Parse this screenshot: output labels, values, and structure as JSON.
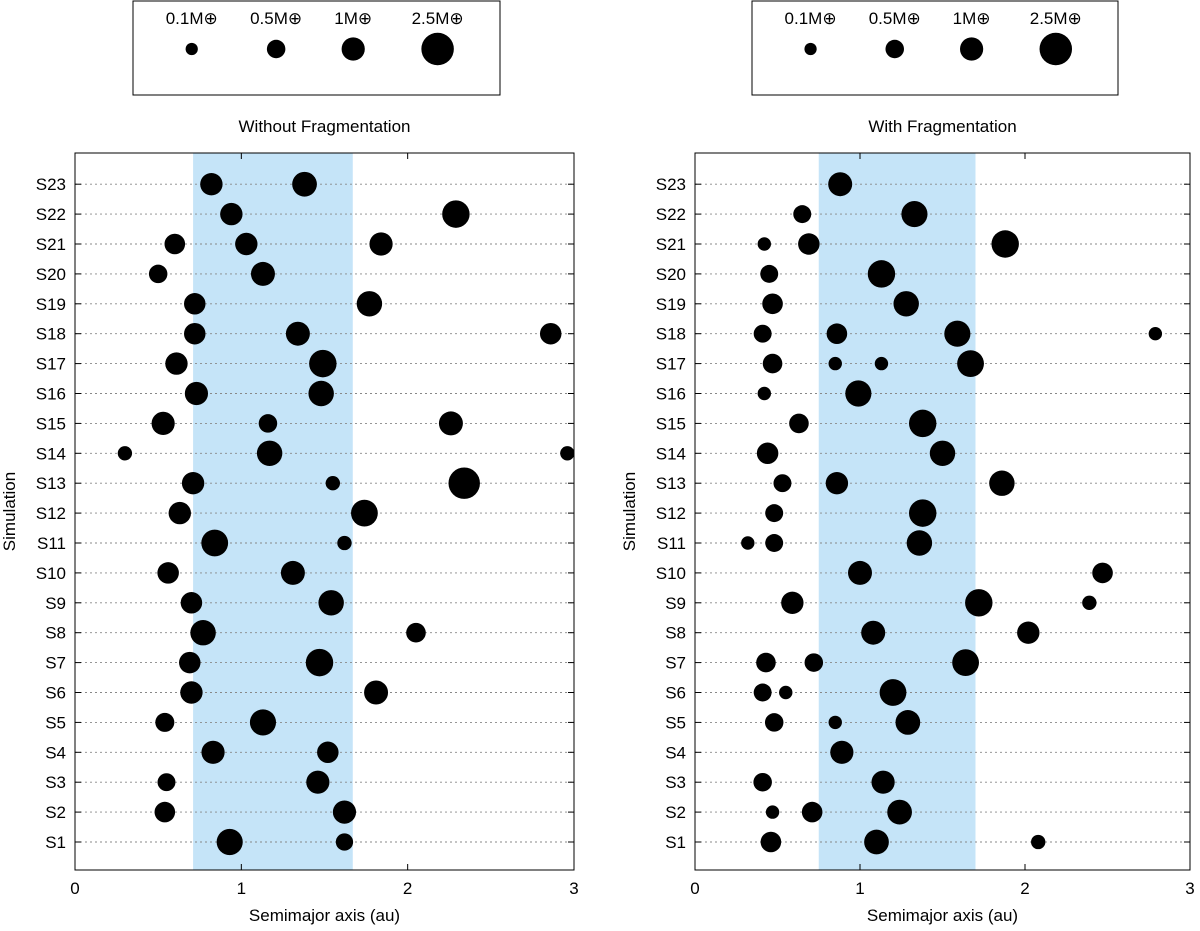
{
  "chart_data": [
    {
      "type": "scatter",
      "title": "Without Fragmentation",
      "xlabel": "Semimajor axis (au)",
      "ylabel": "Simulation",
      "xlim": [
        0,
        3
      ],
      "xticks": [
        "0",
        "1",
        "2",
        "3"
      ],
      "categories": [
        "S1",
        "S2",
        "S3",
        "S4",
        "S5",
        "S6",
        "S7",
        "S8",
        "S9",
        "S10",
        "S11",
        "S12",
        "S13",
        "S14",
        "S15",
        "S16",
        "S17",
        "S18",
        "S19",
        "S20",
        "S21",
        "S22",
        "S23"
      ],
      "shaded_region": {
        "x_start": 0.71,
        "x_end": 1.67,
        "color": "#c5e4f8"
      },
      "legend": {
        "position": "top",
        "entries": [
          {
            "label": "0.1M⊕",
            "mass": 0.1
          },
          {
            "label": "0.5M⊕",
            "mass": 0.5
          },
          {
            "label": "1M⊕",
            "mass": 1.0
          },
          {
            "label": "2.5M⊕",
            "mass": 2.5
          }
        ]
      },
      "grid": "horizontal dotted",
      "points": [
        {
          "sim": "S1",
          "a": 0.93,
          "mass": 1.4
        },
        {
          "sim": "S1",
          "a": 1.62,
          "mass": 0.4
        },
        {
          "sim": "S2",
          "a": 0.54,
          "mass": 0.7
        },
        {
          "sim": "S2",
          "a": 1.62,
          "mass": 1.0
        },
        {
          "sim": "S3",
          "a": 0.55,
          "mass": 0.45
        },
        {
          "sim": "S3",
          "a": 1.46,
          "mass": 1.0
        },
        {
          "sim": "S4",
          "a": 0.83,
          "mass": 1.0
        },
        {
          "sim": "S4",
          "a": 1.52,
          "mass": 0.8
        },
        {
          "sim": "S5",
          "a": 0.54,
          "mass": 0.55
        },
        {
          "sim": "S5",
          "a": 1.13,
          "mass": 1.4
        },
        {
          "sim": "S6",
          "a": 0.7,
          "mass": 0.9
        },
        {
          "sim": "S6",
          "a": 1.81,
          "mass": 1.1
        },
        {
          "sim": "S7",
          "a": 0.69,
          "mass": 0.8
        },
        {
          "sim": "S7",
          "a": 1.47,
          "mass": 1.6
        },
        {
          "sim": "S8",
          "a": 0.77,
          "mass": 1.3
        },
        {
          "sim": "S8",
          "a": 2.05,
          "mass": 0.6
        },
        {
          "sim": "S9",
          "a": 0.7,
          "mass": 0.8
        },
        {
          "sim": "S9",
          "a": 1.54,
          "mass": 1.3
        },
        {
          "sim": "S10",
          "a": 0.56,
          "mass": 0.8
        },
        {
          "sim": "S10",
          "a": 1.31,
          "mass": 1.1
        },
        {
          "sim": "S11",
          "a": 0.84,
          "mass": 1.5
        },
        {
          "sim": "S11",
          "a": 1.62,
          "mass": 0.2
        },
        {
          "sim": "S12",
          "a": 0.63,
          "mass": 0.9
        },
        {
          "sim": "S12",
          "a": 1.74,
          "mass": 1.5
        },
        {
          "sim": "S13",
          "a": 0.71,
          "mass": 0.9
        },
        {
          "sim": "S13",
          "a": 1.55,
          "mass": 0.2
        },
        {
          "sim": "S13",
          "a": 2.34,
          "mass": 2.3
        },
        {
          "sim": "S14",
          "a": 0.3,
          "mass": 0.2
        },
        {
          "sim": "S14",
          "a": 1.17,
          "mass": 1.3
        },
        {
          "sim": "S14",
          "a": 2.96,
          "mass": 0.2
        },
        {
          "sim": "S15",
          "a": 0.53,
          "mass": 1.0
        },
        {
          "sim": "S15",
          "a": 1.16,
          "mass": 0.5
        },
        {
          "sim": "S15",
          "a": 2.26,
          "mass": 1.1
        },
        {
          "sim": "S16",
          "a": 0.73,
          "mass": 1.0
        },
        {
          "sim": "S16",
          "a": 1.48,
          "mass": 1.3
        },
        {
          "sim": "S17",
          "a": 0.61,
          "mass": 0.9
        },
        {
          "sim": "S17",
          "a": 1.49,
          "mass": 1.6
        },
        {
          "sim": "S18",
          "a": 0.72,
          "mass": 0.8
        },
        {
          "sim": "S18",
          "a": 1.34,
          "mass": 1.1
        },
        {
          "sim": "S18",
          "a": 2.86,
          "mass": 0.8
        },
        {
          "sim": "S19",
          "a": 0.72,
          "mass": 0.8
        },
        {
          "sim": "S19",
          "a": 1.77,
          "mass": 1.3
        },
        {
          "sim": "S20",
          "a": 0.5,
          "mass": 0.5
        },
        {
          "sim": "S20",
          "a": 1.13,
          "mass": 1.1
        },
        {
          "sim": "S21",
          "a": 0.6,
          "mass": 0.7
        },
        {
          "sim": "S21",
          "a": 1.03,
          "mass": 0.9
        },
        {
          "sim": "S21",
          "a": 1.84,
          "mass": 1.0
        },
        {
          "sim": "S22",
          "a": 0.94,
          "mass": 0.9
        },
        {
          "sim": "S22",
          "a": 2.29,
          "mass": 1.6
        },
        {
          "sim": "S23",
          "a": 0.82,
          "mass": 0.9
        },
        {
          "sim": "S23",
          "a": 1.38,
          "mass": 1.2
        }
      ]
    },
    {
      "type": "scatter",
      "title": "With Fragmentation",
      "xlabel": "Semimajor axis (au)",
      "ylabel": "Simulation",
      "xlim": [
        0,
        3
      ],
      "xticks": [
        "0",
        "1",
        "2",
        "3"
      ],
      "categories": [
        "S1",
        "S2",
        "S3",
        "S4",
        "S5",
        "S6",
        "S7",
        "S8",
        "S9",
        "S10",
        "S11",
        "S12",
        "S13",
        "S14",
        "S15",
        "S16",
        "S17",
        "S18",
        "S19",
        "S20",
        "S21",
        "S22",
        "S23"
      ],
      "shaded_region": {
        "x_start": 0.75,
        "x_end": 1.7,
        "color": "#c5e4f8"
      },
      "legend": {
        "position": "top",
        "entries": [
          {
            "label": "0.1M⊕",
            "mass": 0.1
          },
          {
            "label": "0.5M⊕",
            "mass": 0.5
          },
          {
            "label": "1M⊕",
            "mass": 1.0
          },
          {
            "label": "2.5M⊕",
            "mass": 2.5
          }
        ]
      },
      "grid": "horizontal dotted",
      "points": [
        {
          "sim": "S1",
          "a": 0.46,
          "mass": 0.7
        },
        {
          "sim": "S1",
          "a": 1.1,
          "mass": 1.2
        },
        {
          "sim": "S1",
          "a": 2.08,
          "mass": 0.2
        },
        {
          "sim": "S2",
          "a": 0.47,
          "mass": 0.15
        },
        {
          "sim": "S2",
          "a": 0.71,
          "mass": 0.7
        },
        {
          "sim": "S2",
          "a": 1.24,
          "mass": 1.2
        },
        {
          "sim": "S3",
          "a": 0.41,
          "mass": 0.5
        },
        {
          "sim": "S3",
          "a": 1.14,
          "mass": 1.0
        },
        {
          "sim": "S4",
          "a": 0.89,
          "mass": 1.0
        },
        {
          "sim": "S5",
          "a": 0.48,
          "mass": 0.5
        },
        {
          "sim": "S5",
          "a": 0.85,
          "mass": 0.15
        },
        {
          "sim": "S5",
          "a": 1.29,
          "mass": 1.2
        },
        {
          "sim": "S6",
          "a": 0.41,
          "mass": 0.45
        },
        {
          "sim": "S6",
          "a": 0.55,
          "mass": 0.15
        },
        {
          "sim": "S6",
          "a": 1.2,
          "mass": 1.5
        },
        {
          "sim": "S7",
          "a": 0.43,
          "mass": 0.6
        },
        {
          "sim": "S7",
          "a": 0.72,
          "mass": 0.5
        },
        {
          "sim": "S7",
          "a": 1.64,
          "mass": 1.5
        },
        {
          "sim": "S8",
          "a": 1.08,
          "mass": 1.1
        },
        {
          "sim": "S8",
          "a": 2.02,
          "mass": 0.9
        },
        {
          "sim": "S9",
          "a": 0.59,
          "mass": 0.9
        },
        {
          "sim": "S9",
          "a": 1.72,
          "mass": 1.6
        },
        {
          "sim": "S9",
          "a": 2.39,
          "mass": 0.2
        },
        {
          "sim": "S10",
          "a": 1.0,
          "mass": 1.1
        },
        {
          "sim": "S10",
          "a": 2.47,
          "mass": 0.7
        },
        {
          "sim": "S11",
          "a": 0.32,
          "mass": 0.15
        },
        {
          "sim": "S11",
          "a": 0.48,
          "mass": 0.45
        },
        {
          "sim": "S11",
          "a": 1.36,
          "mass": 1.3
        },
        {
          "sim": "S12",
          "a": 0.48,
          "mass": 0.45
        },
        {
          "sim": "S12",
          "a": 1.38,
          "mass": 1.6
        },
        {
          "sim": "S13",
          "a": 0.53,
          "mass": 0.45
        },
        {
          "sim": "S13",
          "a": 0.86,
          "mass": 0.9
        },
        {
          "sim": "S13",
          "a": 1.86,
          "mass": 1.3
        },
        {
          "sim": "S14",
          "a": 0.44,
          "mass": 0.8
        },
        {
          "sim": "S14",
          "a": 1.5,
          "mass": 1.3
        },
        {
          "sim": "S15",
          "a": 0.63,
          "mass": 0.6
        },
        {
          "sim": "S15",
          "a": 1.38,
          "mass": 1.6
        },
        {
          "sim": "S16",
          "a": 0.42,
          "mass": 0.15
        },
        {
          "sim": "S16",
          "a": 0.99,
          "mass": 1.4
        },
        {
          "sim": "S17",
          "a": 0.47,
          "mass": 0.6
        },
        {
          "sim": "S17",
          "a": 0.85,
          "mass": 0.15
        },
        {
          "sim": "S17",
          "a": 1.13,
          "mass": 0.15
        },
        {
          "sim": "S17",
          "a": 1.67,
          "mass": 1.5
        },
        {
          "sim": "S18",
          "a": 0.41,
          "mass": 0.45
        },
        {
          "sim": "S18",
          "a": 0.86,
          "mass": 0.7
        },
        {
          "sim": "S18",
          "a": 1.59,
          "mass": 1.4
        },
        {
          "sim": "S18",
          "a": 2.79,
          "mass": 0.15
        },
        {
          "sim": "S19",
          "a": 0.47,
          "mass": 0.7
        },
        {
          "sim": "S19",
          "a": 1.28,
          "mass": 1.3
        },
        {
          "sim": "S20",
          "a": 0.45,
          "mass": 0.45
        },
        {
          "sim": "S20",
          "a": 1.13,
          "mass": 1.6
        },
        {
          "sim": "S21",
          "a": 0.42,
          "mass": 0.15
        },
        {
          "sim": "S21",
          "a": 0.69,
          "mass": 0.8
        },
        {
          "sim": "S21",
          "a": 1.88,
          "mass": 1.6
        },
        {
          "sim": "S22",
          "a": 0.65,
          "mass": 0.45
        },
        {
          "sim": "S22",
          "a": 1.33,
          "mass": 1.4
        },
        {
          "sim": "S23",
          "a": 0.88,
          "mass": 1.1
        }
      ]
    }
  ]
}
